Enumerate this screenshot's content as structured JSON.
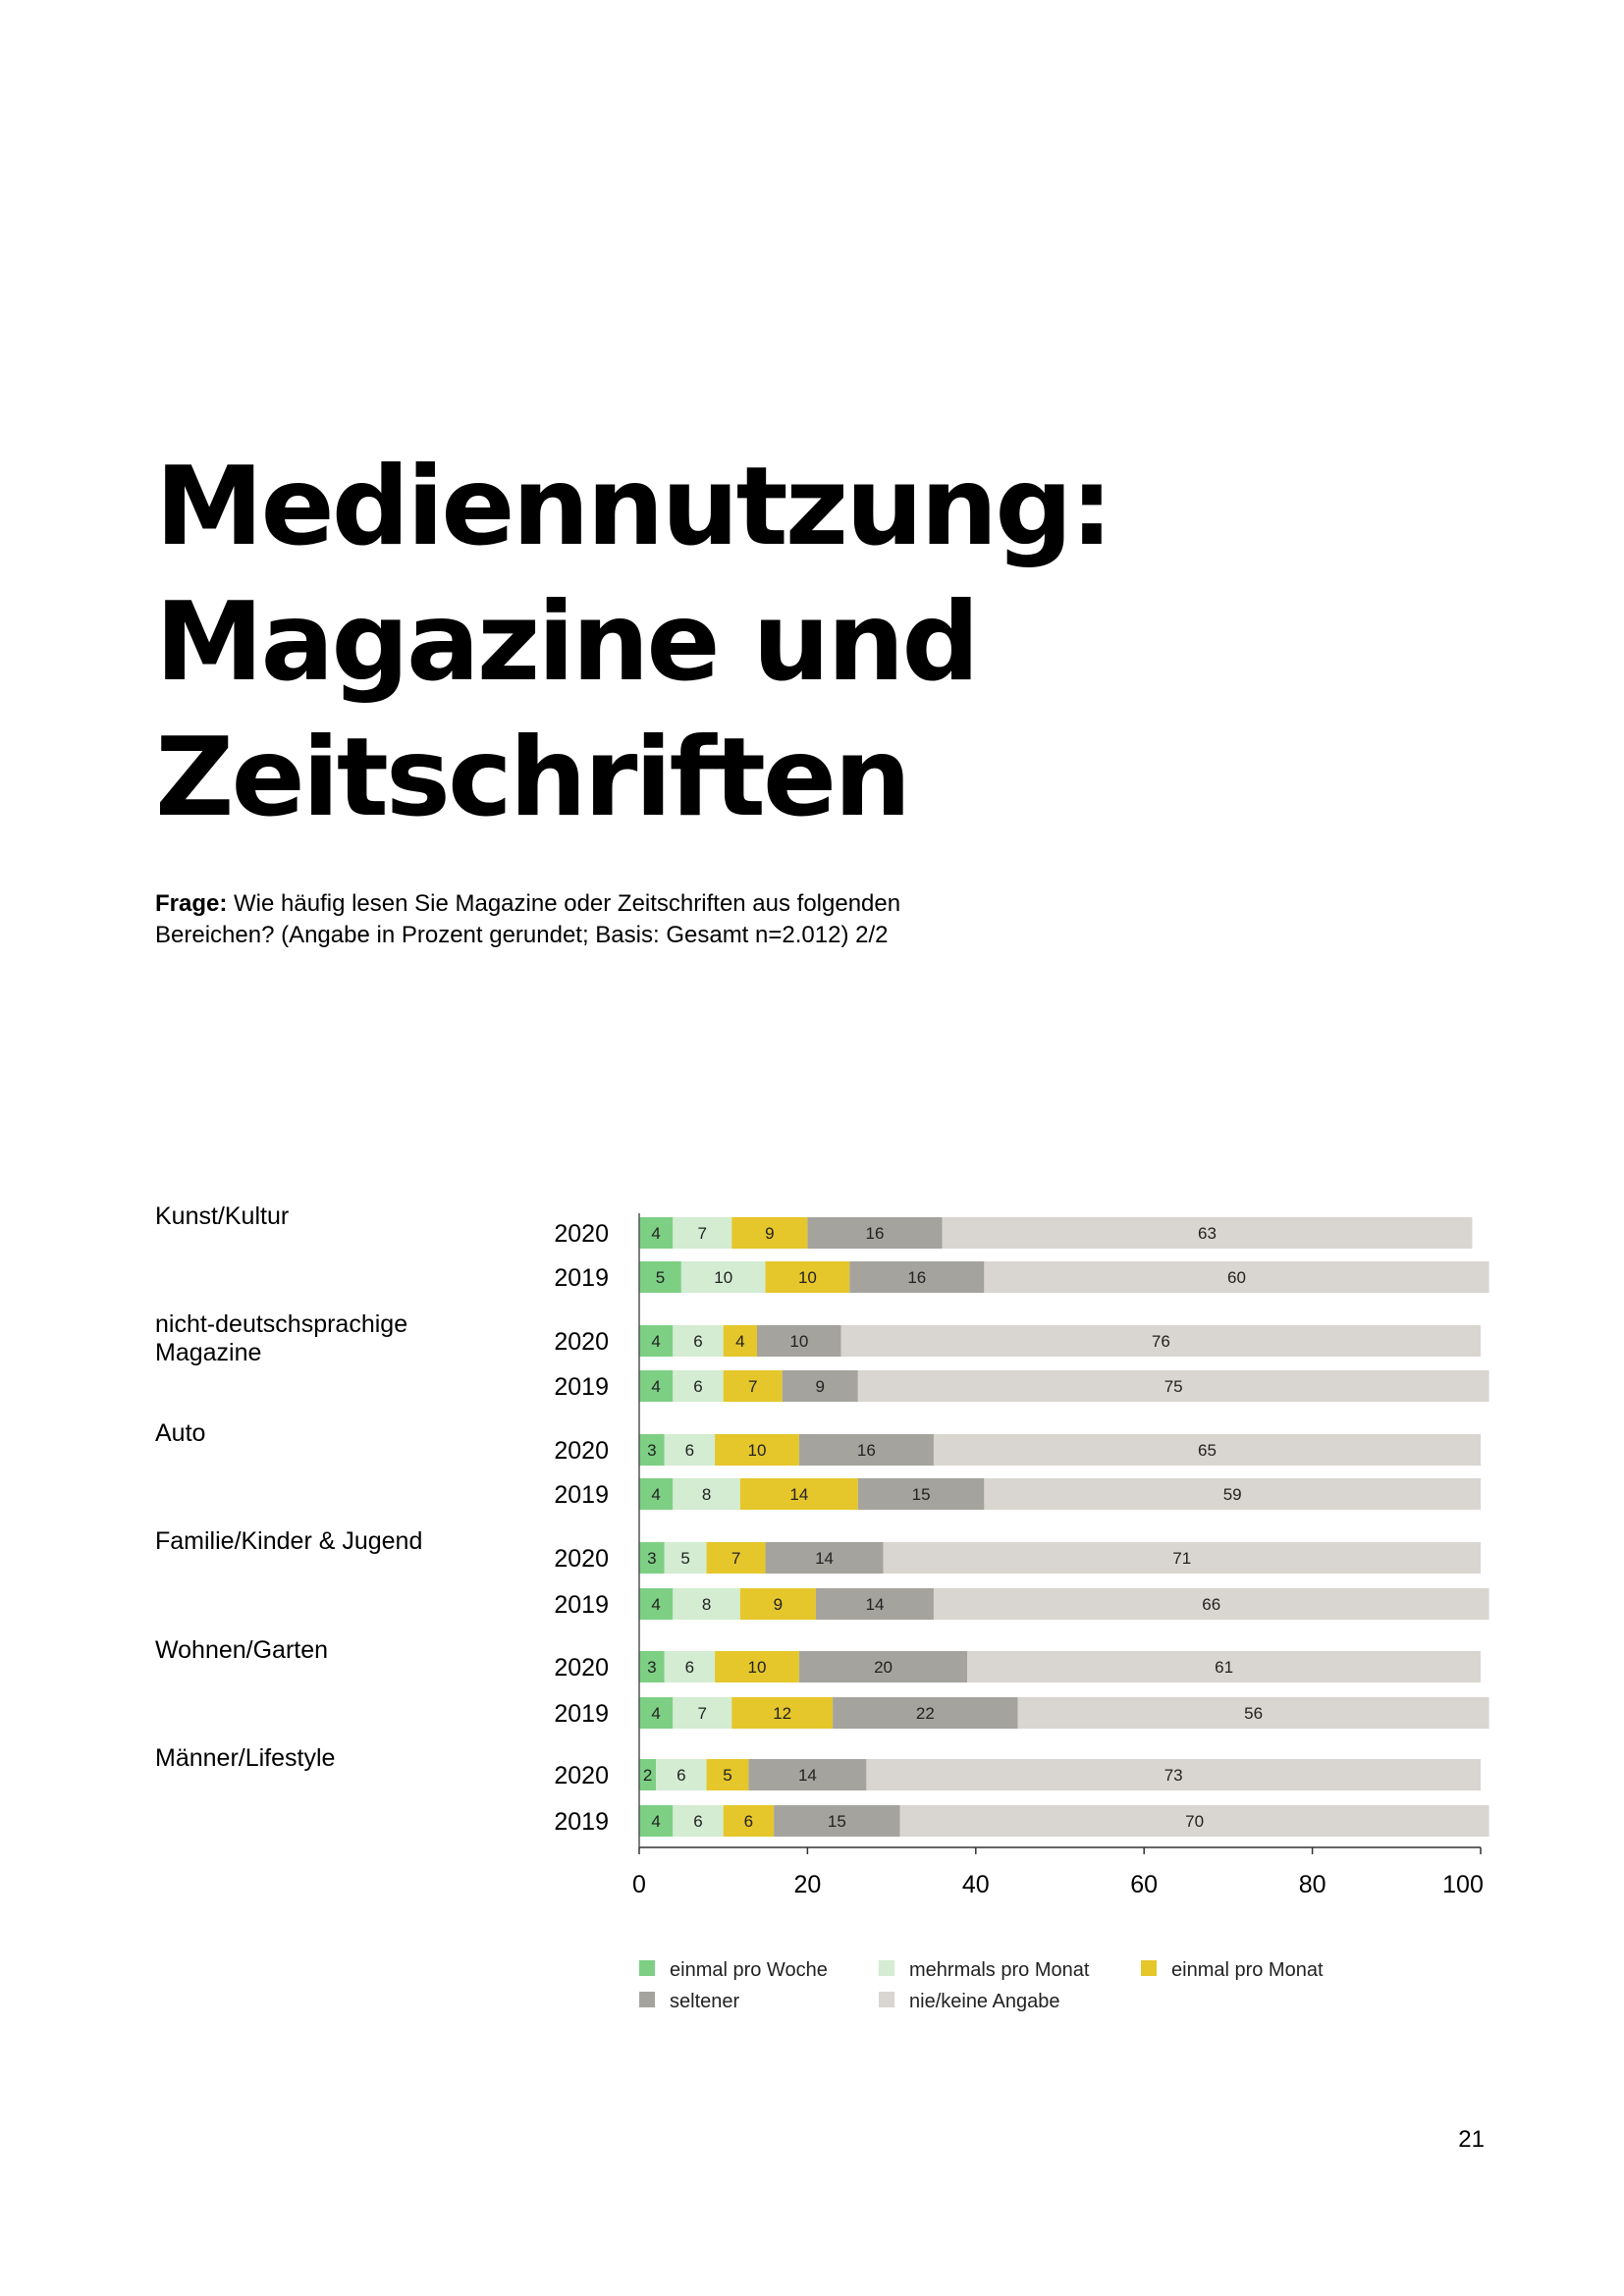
{
  "title_lines": [
    "Mediennutzung:",
    "Magazine und",
    "Zeitschriften"
  ],
  "question": {
    "label": "Frage:",
    "text": "Wie häufig lesen Sie Magazine oder Zeitschriften aus folgenden Bereichen? (Angabe in Prozent gerundet; Basis: Gesamt n=2.012) 2/2"
  },
  "page_number": "21",
  "chart_data": {
    "type": "bar",
    "orientation": "horizontal",
    "stacked": true,
    "xlim": [
      0,
      100
    ],
    "xticks": [
      0,
      20,
      40,
      60,
      80,
      100
    ],
    "legend_position": "bottom",
    "series": [
      {
        "name": "einmal pro Woche",
        "color": "#7dcf84"
      },
      {
        "name": "mehrmals pro Monat",
        "color": "#d3ecd2"
      },
      {
        "name": "einmal pro Monat",
        "color": "#e5c62b"
      },
      {
        "name": "seltener",
        "color": "#a5a39e"
      },
      {
        "name": "nie/keine Angabe",
        "color": "#d9d5d0"
      }
    ],
    "groups": [
      {
        "label_lines": [
          "Kunst/Kultur"
        ],
        "rows": [
          {
            "year": "2020",
            "values": [
              4,
              7,
              9,
              16,
              63
            ]
          },
          {
            "year": "2019",
            "values": [
              5,
              10,
              10,
              16,
              60
            ]
          }
        ]
      },
      {
        "label_lines": [
          "nicht-deutschsprachige",
          "Magazine"
        ],
        "rows": [
          {
            "year": "2020",
            "values": [
              4,
              6,
              4,
              10,
              76
            ]
          },
          {
            "year": "2019",
            "values": [
              4,
              6,
              7,
              9,
              75
            ]
          }
        ]
      },
      {
        "label_lines": [
          "Auto"
        ],
        "rows": [
          {
            "year": "2020",
            "values": [
              3,
              6,
              10,
              16,
              65
            ]
          },
          {
            "year": "2019",
            "values": [
              4,
              8,
              14,
              15,
              59
            ]
          }
        ]
      },
      {
        "label_lines": [
          "Familie/Kinder & Jugend"
        ],
        "rows": [
          {
            "year": "2020",
            "values": [
              3,
              5,
              7,
              14,
              71
            ]
          },
          {
            "year": "2019",
            "values": [
              4,
              8,
              9,
              14,
              66
            ]
          }
        ]
      },
      {
        "label_lines": [
          "Wohnen/Garten"
        ],
        "rows": [
          {
            "year": "2020",
            "values": [
              3,
              6,
              10,
              20,
              61
            ]
          },
          {
            "year": "2019",
            "values": [
              4,
              7,
              12,
              22,
              56
            ]
          }
        ]
      },
      {
        "label_lines": [
          "Männer/Lifestyle"
        ],
        "rows": [
          {
            "year": "2020",
            "values": [
              2,
              6,
              5,
              14,
              73
            ]
          },
          {
            "year": "2019",
            "values": [
              4,
              6,
              6,
              15,
              70
            ]
          }
        ]
      }
    ]
  }
}
